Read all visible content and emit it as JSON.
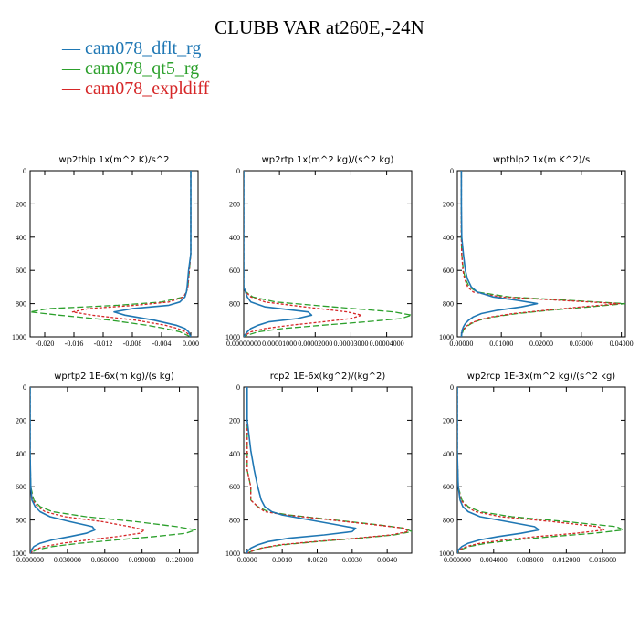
{
  "page_title": "CLUBB VAR at260E,-24N",
  "legend": [
    {
      "label": "cam078_dflt_rg",
      "color": "#1f77b4"
    },
    {
      "label": "cam078_qt5_rg",
      "color": "#2ca02c"
    },
    {
      "label": "cam078_expldiff",
      "color": "#d62728"
    }
  ],
  "colors": {
    "dflt": "#1f77b4",
    "qt5": "#2ca02c",
    "expldiff": "#d62728"
  },
  "chart_data": [
    {
      "type": "line",
      "title": "wp2thlp   1x(m^2 K)/s^2",
      "xlim": [
        -0.022,
        0.001
      ],
      "ylim": [
        1000,
        0
      ],
      "xticks": [
        -0.02,
        -0.016,
        -0.012,
        -0.008,
        -0.004,
        0.0
      ],
      "xtick_labels": [
        "-0.020",
        "-0.016",
        "-0.012",
        "-0.008",
        "-0.004",
        "0.000"
      ],
      "yticks": [
        0,
        200,
        400,
        600,
        800,
        1000
      ],
      "ytick_labels": [
        "0",
        "200",
        "400",
        "600",
        "800",
        "1000"
      ],
      "y": [
        0,
        100,
        200,
        300,
        400,
        500,
        600,
        650,
        700,
        730,
        760,
        790,
        810,
        830,
        850,
        870,
        900,
        930,
        950,
        970,
        990,
        1000
      ],
      "series": [
        {
          "name": "cam078_dflt_rg",
          "x": [
            0.0,
            0.0,
            0.0,
            0.0,
            0.0,
            0.0,
            -0.0003,
            -0.0004,
            -0.0005,
            -0.0006,
            -0.0008,
            -0.0015,
            -0.003,
            -0.008,
            -0.0105,
            -0.009,
            -0.005,
            -0.002,
            -0.0008,
            -0.0003,
            -0.0001,
            0.0
          ]
        },
        {
          "name": "cam078_qt5_rg",
          "x": [
            0.0,
            0.0,
            0.0,
            0.0,
            0.0,
            0.0,
            -0.0002,
            -0.0003,
            -0.0004,
            -0.0006,
            -0.001,
            -0.004,
            -0.01,
            -0.0195,
            -0.022,
            -0.018,
            -0.011,
            -0.006,
            -0.0035,
            -0.0015,
            -0.0005,
            0.0
          ]
        },
        {
          "name": "cam078_expldiff",
          "x": [
            0.0,
            0.0,
            0.0,
            0.0,
            0.0,
            0.0,
            -0.0002,
            -0.0003,
            -0.0004,
            -0.0006,
            -0.001,
            -0.003,
            -0.0075,
            -0.014,
            -0.0162,
            -0.0135,
            -0.0075,
            -0.0035,
            -0.0018,
            -0.0007,
            -0.0002,
            0.0
          ]
        }
      ]
    },
    {
      "type": "line",
      "title": "wp2rtp   1x(m^2 kg)/(s^2 kg)",
      "xlim": [
        0,
        4.7e-05
      ],
      "ylim": [
        1000,
        0
      ],
      "xticks": [
        0,
        1e-05,
        2e-05,
        3e-05,
        4e-05
      ],
      "xtick_labels": [
        "0.00000000",
        "0.00001000",
        "0.00002000",
        "0.00003000",
        "0.00004000"
      ],
      "yticks": [
        0,
        200,
        400,
        600,
        800,
        1000
      ],
      "ytick_labels": [
        "0",
        "200",
        "400",
        "600",
        "800",
        "1000"
      ],
      "y": [
        0,
        200,
        400,
        600,
        700,
        730,
        760,
        790,
        820,
        850,
        870,
        890,
        910,
        930,
        950,
        970,
        990,
        1000
      ],
      "series": [
        {
          "name": "cam078_dflt_rg",
          "x": [
            0,
            0,
            0,
            0,
            0.0,
            5e-07,
            1e-06,
            2e-06,
            6e-06,
            1.8e-05,
            1.9e-05,
            1.5e-05,
            7e-06,
            4e-06,
            2e-06,
            1e-06,
            3e-07,
            0
          ]
        },
        {
          "name": "cam078_qt5_rg",
          "x": [
            0,
            0,
            0,
            0,
            0.0,
            7e-07,
            2.5e-06,
            9e-06,
            2.5e-05,
            4.2e-05,
            4.7e-05,
            4.4e-05,
            3.4e-05,
            2.2e-05,
            1.1e-05,
            4e-06,
            1e-06,
            0
          ]
        },
        {
          "name": "cam078_expldiff",
          "x": [
            0,
            0,
            0,
            0,
            0.0,
            6e-07,
            2e-06,
            6e-06,
            1.7e-05,
            2.9e-05,
            3.3e-05,
            3e-05,
            2.2e-05,
            1.3e-05,
            6e-06,
            2e-06,
            5e-07,
            0
          ]
        }
      ]
    },
    {
      "type": "line",
      "title": "wpthlp2   1x(m K^2)/s",
      "xlim": [
        -0.001,
        0.041
      ],
      "ylim": [
        1000,
        0
      ],
      "xticks": [
        0.0,
        0.01,
        0.02,
        0.03,
        0.04
      ],
      "xtick_labels": [
        "0.00000",
        "0.01000",
        "0.02000",
        "0.03000",
        "0.04000"
      ],
      "yticks": [
        0,
        200,
        400,
        600,
        800,
        1000
      ],
      "ytick_labels": [
        "0",
        "200",
        "400",
        "600",
        "800",
        "1000"
      ],
      "y": [
        0,
        200,
        400,
        500,
        600,
        650,
        700,
        730,
        760,
        780,
        800,
        820,
        840,
        860,
        880,
        900,
        920,
        940,
        960,
        980,
        1000
      ],
      "series": [
        {
          "name": "cam078_dflt_rg",
          "x": [
            0.0,
            0.0,
            0.0001,
            0.0005,
            0.001,
            0.0015,
            0.0025,
            0.004,
            0.008,
            0.014,
            0.019,
            0.015,
            0.009,
            0.005,
            0.003,
            0.0018,
            0.001,
            0.0005,
            0.0002,
            0.0001,
            0.0
          ]
        },
        {
          "name": "cam078_qt5_rg",
          "x": [
            0.0,
            0.0,
            0.0,
            0.0001,
            0.0005,
            0.001,
            0.002,
            0.004,
            0.012,
            0.027,
            0.041,
            0.032,
            0.022,
            0.014,
            0.008,
            0.0045,
            0.0025,
            0.0012,
            0.0005,
            0.0002,
            0.0
          ]
        },
        {
          "name": "cam078_expldiff",
          "x": [
            0.0,
            0.0,
            0.0,
            0.0001,
            0.0004,
            0.0008,
            0.0016,
            0.003,
            0.01,
            0.025,
            0.0395,
            0.03,
            0.021,
            0.013,
            0.0075,
            0.0042,
            0.0022,
            0.001,
            0.0004,
            0.0001,
            0.0
          ]
        }
      ]
    },
    {
      "type": "line",
      "title": "wprtp2   1E-6x(m kg)/(s kg)",
      "xlim": [
        0,
        0.135
      ],
      "ylim": [
        1000,
        0
      ],
      "xticks": [
        0,
        0.03,
        0.06,
        0.09,
        0.12
      ],
      "xtick_labels": [
        "0.000000",
        "0.030000",
        "0.060000",
        "0.090000",
        "0.120000"
      ],
      "yticks": [
        0,
        200,
        400,
        600,
        800,
        1000
      ],
      "ytick_labels": [
        "0",
        "200",
        "400",
        "600",
        "800",
        "1000"
      ],
      "y": [
        0,
        200,
        400,
        600,
        680,
        720,
        750,
        780,
        810,
        840,
        860,
        880,
        900,
        920,
        940,
        960,
        980,
        1000
      ],
      "series": [
        {
          "name": "cam078_dflt_rg",
          "x": [
            0,
            0,
            0,
            0.0005,
            0.0015,
            0.004,
            0.008,
            0.016,
            0.032,
            0.05,
            0.052,
            0.045,
            0.032,
            0.018,
            0.008,
            0.003,
            0.001,
            0
          ]
        },
        {
          "name": "cam078_qt5_rg",
          "x": [
            0,
            0,
            0,
            0.0005,
            0.003,
            0.008,
            0.018,
            0.045,
            0.085,
            0.118,
            0.133,
            0.125,
            0.1,
            0.07,
            0.04,
            0.018,
            0.005,
            0
          ]
        },
        {
          "name": "cam078_expldiff",
          "x": [
            0,
            0,
            0,
            0.0003,
            0.002,
            0.006,
            0.012,
            0.028,
            0.058,
            0.08,
            0.092,
            0.088,
            0.07,
            0.047,
            0.026,
            0.011,
            0.003,
            0
          ]
        }
      ]
    },
    {
      "type": "line",
      "title": "rcp2   1E-6x(kg^2)/(kg^2)",
      "xlim": [
        -0.0001,
        0.0047
      ],
      "ylim": [
        1000,
        0
      ],
      "xticks": [
        0,
        0.001,
        0.002,
        0.003,
        0.004
      ],
      "xtick_labels": [
        "0.0000",
        "0.0010",
        "0.0020",
        "0.0030",
        "0.0040"
      ],
      "yticks": [
        0,
        200,
        400,
        600,
        800,
        1000
      ],
      "ytick_labels": [
        "0",
        "200",
        "400",
        "600",
        "800",
        "1000"
      ],
      "y": [
        0,
        200,
        380,
        500,
        600,
        680,
        720,
        750,
        770,
        800,
        830,
        850,
        870,
        890,
        910,
        930,
        950,
        970,
        990,
        1000
      ],
      "series": [
        {
          "name": "cam078_dflt_rg",
          "x": [
            0.0,
            0.0,
            0.0001,
            0.0002,
            0.0003,
            0.0004,
            0.0005,
            0.0007,
            0.001,
            0.0018,
            0.0026,
            0.0031,
            0.003,
            0.0022,
            0.0012,
            0.0006,
            0.0003,
            0.0001,
            0.0,
            0.0
          ]
        },
        {
          "name": "cam078_qt5_rg",
          "x": [
            0.0,
            0.0,
            0.0,
            0.0,
            0.0001,
            0.0001,
            0.0003,
            0.0006,
            0.0012,
            0.0025,
            0.0038,
            0.0045,
            0.0047,
            0.0042,
            0.0032,
            0.002,
            0.001,
            0.0004,
            0.0001,
            0.0
          ]
        },
        {
          "name": "cam078_expldiff",
          "x": [
            0.0,
            0.0,
            0.0,
            0.0,
            0.0001,
            0.0001,
            0.0003,
            0.0005,
            0.0011,
            0.0024,
            0.0037,
            0.0045,
            0.0046,
            0.0041,
            0.0031,
            0.0019,
            0.0009,
            0.0004,
            0.0001,
            0.0
          ]
        }
      ]
    },
    {
      "type": "line",
      "title": "wp2rcp   1E-3x(m^2 kg)/(s^2 kg)",
      "xlim": [
        0,
        0.0185
      ],
      "ylim": [
        1000,
        0
      ],
      "xticks": [
        0,
        0.004,
        0.008,
        0.012,
        0.016
      ],
      "xtick_labels": [
        "0.000000",
        "0.004000",
        "0.008000",
        "0.012000",
        "0.016000"
      ],
      "yticks": [
        0,
        200,
        400,
        600,
        800,
        1000
      ],
      "ytick_labels": [
        "0",
        "200",
        "400",
        "600",
        "800",
        "1000"
      ],
      "y": [
        0,
        200,
        400,
        600,
        680,
        720,
        750,
        780,
        810,
        840,
        860,
        880,
        900,
        920,
        940,
        960,
        980,
        1000
      ],
      "series": [
        {
          "name": "cam078_dflt_rg",
          "x": [
            0,
            0,
            0,
            0.0001,
            0.0003,
            0.0006,
            0.0012,
            0.0025,
            0.0055,
            0.0085,
            0.009,
            0.007,
            0.0045,
            0.0025,
            0.0012,
            0.0005,
            0.0001,
            0
          ]
        },
        {
          "name": "cam078_qt5_rg",
          "x": [
            0,
            0,
            0,
            0.0001,
            0.0005,
            0.0012,
            0.0025,
            0.006,
            0.012,
            0.0175,
            0.0183,
            0.015,
            0.0105,
            0.0065,
            0.0032,
            0.0013,
            0.0003,
            0
          ]
        },
        {
          "name": "cam078_expldiff",
          "x": [
            0,
            0,
            0,
            0.0001,
            0.0004,
            0.001,
            0.002,
            0.0048,
            0.0105,
            0.0155,
            0.0162,
            0.013,
            0.0088,
            0.0052,
            0.0025,
            0.001,
            0.0002,
            0
          ]
        }
      ]
    }
  ]
}
